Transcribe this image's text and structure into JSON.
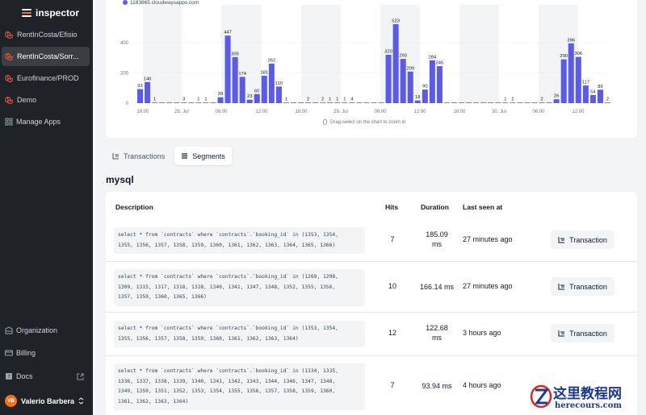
{
  "app": {
    "name": "inspector"
  },
  "sidebar": {
    "apps": [
      {
        "label": "RentInCosta/Efisio",
        "active": false
      },
      {
        "label": "RentInCosta/Sorr...",
        "active": true
      },
      {
        "label": "Eurofinance/PROD",
        "active": false
      },
      {
        "label": "Demo",
        "active": false
      }
    ],
    "manage_apps": "Manage Apps",
    "organization": "Organization",
    "billing": "Billing",
    "docs": "Docs",
    "user": {
      "initials": "VB",
      "name": "Valerio Barbera"
    }
  },
  "chart": {
    "hint": "Drag-select on the chart to zoom in"
  },
  "chart_data": {
    "type": "bar",
    "series_name": "1183865.cloudwaysapps.com",
    "color": "#5b5be6",
    "y_ticks": [
      0,
      200,
      400
    ],
    "x_ticks": [
      "18:00",
      "28. Jul",
      "06:00",
      "12:00",
      "18:00",
      "29. Jul",
      "06:00",
      "12:00",
      "18:00",
      "30. Jul",
      "06:00",
      "12:00"
    ],
    "values": [
      93,
      140,
      1,
      0,
      0,
      0,
      3,
      0,
      1,
      1,
      0,
      39,
      447,
      305,
      174,
      23,
      60,
      181,
      262,
      110,
      1,
      0,
      0,
      2,
      0,
      2,
      1,
      1,
      1,
      4,
      0,
      0,
      0,
      0,
      320,
      523,
      293,
      209,
      18,
      90,
      284,
      245,
      0,
      0,
      0,
      0,
      0,
      0,
      0,
      0,
      1,
      2,
      0,
      0,
      0,
      2,
      0,
      26,
      290,
      396,
      306,
      117,
      54,
      89,
      2
    ],
    "ylim": [
      0,
      560
    ]
  },
  "tabs": {
    "transactions": "Transactions",
    "segments": "Segments"
  },
  "section_title": "mysql",
  "table": {
    "headers": {
      "description": "Description",
      "hits": "Hits",
      "duration": "Duration",
      "last_seen": "Last seen at"
    },
    "rows": [
      {
        "lines": [
          "select * from `contracts` where `contracts`.`booking_id` in (1353, 1354,",
          "1355, 1356, 1357, 1358, 1359, 1360, 1361, 1362, 1363, 1364, 1365, 1366)"
        ],
        "hits": "7",
        "duration_value": "185.09",
        "duration_unit": "ms",
        "last_seen": "27 minutes ago",
        "button": "Transaction"
      },
      {
        "lines": [
          "select * from `contracts` where `contracts`.`booking_id` in (1269, 1298,",
          "1309, 1315, 1317, 1318, 1328, 1340, 1341, 1347, 1348, 1352, 1355, 1356,",
          "1357, 1359, 1360, 1365, 1366)"
        ],
        "hits": "10",
        "duration": "166.14 ms",
        "last_seen": "27 minutes ago",
        "button": "Transaction"
      },
      {
        "lines": [
          "select * from `contracts` where `contracts`.`booking_id` in (1353, 1354,",
          "1355, 1356, 1357, 1358, 1359, 1360, 1361, 1362, 1363, 1364)"
        ],
        "hits": "12",
        "duration_value": "122.68",
        "duration_unit": "ms",
        "last_seen": "3 hours ago",
        "button": "Transaction"
      },
      {
        "lines": [
          "select * from `contracts` where `contracts`.`booking_id` in (1334, 1335,",
          "1336, 1337, 1338, 1339, 1340, 1341, 1342, 1343, 1344, 1346, 1347, 1348,",
          "1349, 1350, 1351, 1352, 1353, 1354, 1355, 1356, 1357, 1358, 1359, 1360,",
          "1361, 1362, 1363, 1364)"
        ],
        "hits": "7",
        "duration": "93.94 ms",
        "last_seen": "4 hours ago"
      }
    ]
  },
  "watermark": {
    "cn": "这里教程网",
    "url": "herecours.com"
  }
}
